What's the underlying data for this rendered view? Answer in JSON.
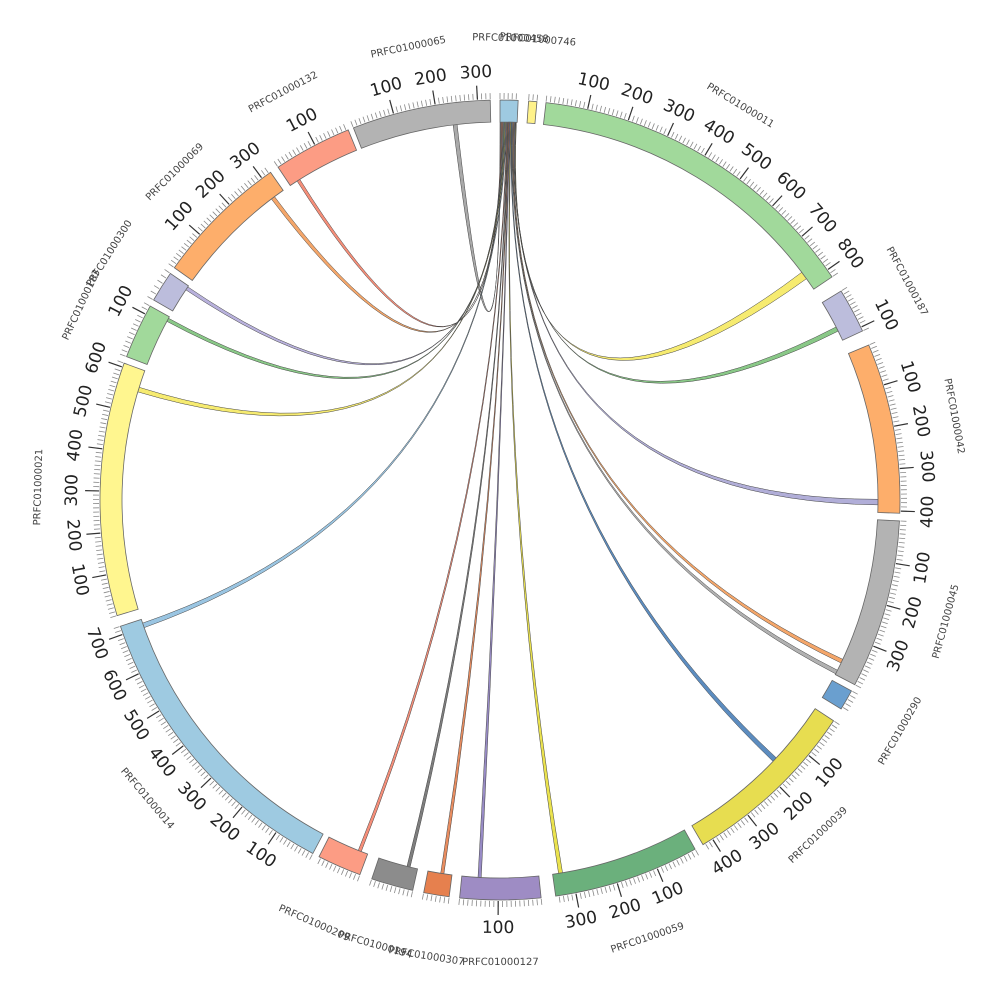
{
  "chart_data": {
    "type": "chord",
    "minor_tick_step": 10,
    "segments": [
      {
        "name": "PRFC01000458",
        "length": 45,
        "color": "#9ecae1",
        "ticks": []
      },
      {
        "name": "PRFC01000746",
        "length": 20,
        "color": "#fff28a",
        "ticks": []
      },
      {
        "name": "PRFC01000011",
        "length": 820,
        "color": "#a1d99b",
        "ticks": [
          100,
          200,
          300,
          400,
          500,
          600,
          700,
          800
        ]
      },
      {
        "name": "PRFC01000187",
        "length": 110,
        "color": "#bcbddc",
        "ticks": [
          100
        ]
      },
      {
        "name": "PRFC01000042",
        "length": 405,
        "color": "#fdae6b",
        "ticks": [
          100,
          200,
          300,
          400
        ]
      },
      {
        "name": "PRFC01000045",
        "length": 400,
        "color": "#b3b3b3",
        "ticks": [
          100,
          200,
          300
        ]
      },
      {
        "name": "PRFC01000290",
        "length": 45,
        "color": "#6a9fcf",
        "ticks": []
      },
      {
        "name": "PRFC01000039",
        "length": 426,
        "color": "#e7dd50",
        "ticks": [
          100,
          200,
          300,
          400
        ]
      },
      {
        "name": "PRFC01000059",
        "length": 348,
        "color": "#6bb07c",
        "ticks": [
          100,
          200,
          300
        ]
      },
      {
        "name": "PRFC01000127",
        "length": 190,
        "color": "#9e8cc4",
        "ticks": [
          100
        ]
      },
      {
        "name": "PRFC01000307",
        "length": 60,
        "color": "#e6804e",
        "ticks": []
      },
      {
        "name": "PRFC01000194",
        "length": 100,
        "color": "#8c8c8c",
        "ticks": []
      },
      {
        "name": "PRFC01000209",
        "length": 105,
        "color": "#fc9c84",
        "ticks": []
      },
      {
        "name": "PRFC01000014",
        "length": 720,
        "color": "#9ecae1",
        "ticks": [
          100,
          200,
          300,
          400,
          500,
          600,
          700
        ]
      },
      {
        "name": "PRFC01000021",
        "length": 610,
        "color": "#fff68f",
        "ticks": [
          100,
          200,
          300,
          400,
          500,
          600
        ]
      },
      {
        "name": "PRFC01000183",
        "length": 120,
        "color": "#a1d99b",
        "ticks": [
          100
        ]
      },
      {
        "name": "PRFC01000300",
        "length": 50,
        "color": "#bcbddc",
        "ticks": []
      },
      {
        "name": "PRFC01000069",
        "length": 325,
        "color": "#fdae6b",
        "ticks": [
          100,
          200,
          300
        ]
      },
      {
        "name": "PRFC01000132",
        "length": 185,
        "color": "#fc9c84",
        "ticks": [
          100
        ]
      },
      {
        "name": "PRFC01000065",
        "length": 330,
        "color": "#b3b3b3",
        "ticks": [
          100,
          200,
          300
        ]
      }
    ],
    "links": [
      {
        "source": "PRFC01000458",
        "source_range": [
          0,
          2
        ],
        "target": "PRFC01000065",
        "target_range": [
          236,
          246
        ],
        "color": "#a0a0a0"
      },
      {
        "source": "PRFC01000458",
        "source_range": [
          2.5,
          4.5
        ],
        "target": "PRFC01000132",
        "target_range": [
          20,
          28
        ],
        "color": "#f4826a"
      },
      {
        "source": "PRFC01000458",
        "source_range": [
          5,
          7
        ],
        "target": "PRFC01000069",
        "target_range": [
          288,
          298
        ],
        "color": "#f39c5a"
      },
      {
        "source": "PRFC01000458",
        "source_range": [
          7.5,
          9.5
        ],
        "target": "PRFC01000300",
        "target_range": [
          42,
          48
        ],
        "color": "#b0a8d8"
      },
      {
        "source": "PRFC01000458",
        "source_range": [
          10,
          12
        ],
        "target": "PRFC01000183",
        "target_range": [
          108,
          116
        ],
        "color": "#7cc27a"
      },
      {
        "source": "PRFC01000458",
        "source_range": [
          12.5,
          14.5
        ],
        "target": "PRFC01000021",
        "target_range": [
          554,
          566
        ],
        "color": "#f5e960"
      },
      {
        "source": "PRFC01000458",
        "source_range": [
          15,
          17
        ],
        "target": "PRFC01000014",
        "target_range": [
          698,
          710
        ],
        "color": "#8fbfdf"
      },
      {
        "source": "PRFC01000458",
        "source_range": [
          17.5,
          19.5
        ],
        "target": "PRFC01000209",
        "target_range": [
          17,
          25
        ],
        "color": "#f4826a"
      },
      {
        "source": "PRFC01000458",
        "source_range": [
          20,
          22
        ],
        "target": "PRFC01000194",
        "target_range": [
          19,
          27
        ],
        "color": "#707070"
      },
      {
        "source": "PRFC01000458",
        "source_range": [
          22.5,
          24.5
        ],
        "target": "PRFC01000307",
        "target_range": [
          20,
          28
        ],
        "color": "#e6804e"
      },
      {
        "source": "PRFC01000458",
        "source_range": [
          25,
          27
        ],
        "target": "PRFC01000127",
        "target_range": [
          142,
          150
        ],
        "color": "#8d7ec0"
      },
      {
        "source": "PRFC01000458",
        "source_range": [
          27.5,
          29.5
        ],
        "target": "PRFC01000059",
        "target_range": [
          323,
          333
        ],
        "color": "#e8df3a"
      },
      {
        "source": "PRFC01000458",
        "source_range": [
          30,
          32
        ],
        "target": "PRFC01000039",
        "target_range": [
          156,
          168
        ],
        "color": "#4a7fb8"
      },
      {
        "source": "PRFC01000458",
        "source_range": [
          32.5,
          34.5
        ],
        "target": "PRFC01000045",
        "target_range": [
          388,
          398
        ],
        "color": "#a8a8a8"
      },
      {
        "source": "PRFC01000458",
        "source_range": [
          35,
          37
        ],
        "target": "PRFC01000045",
        "target_range": [
          358,
          368
        ],
        "color": "#f39c5a"
      },
      {
        "source": "PRFC01000458",
        "source_range": [
          37.5,
          39.5
        ],
        "target": "PRFC01000042",
        "target_range": [
          372,
          386
        ],
        "color": "#a9a5d4"
      },
      {
        "source": "PRFC01000458",
        "source_range": [
          40,
          41
        ],
        "target": "PRFC01000187",
        "target_range": [
          72,
          84
        ],
        "color": "#7cc27a"
      },
      {
        "source": "PRFC01000458",
        "source_range": [
          41.5,
          43
        ],
        "target": "PRFC01000011",
        "target_range": [
          768,
          788
        ],
        "color": "#f5e960"
      }
    ]
  }
}
